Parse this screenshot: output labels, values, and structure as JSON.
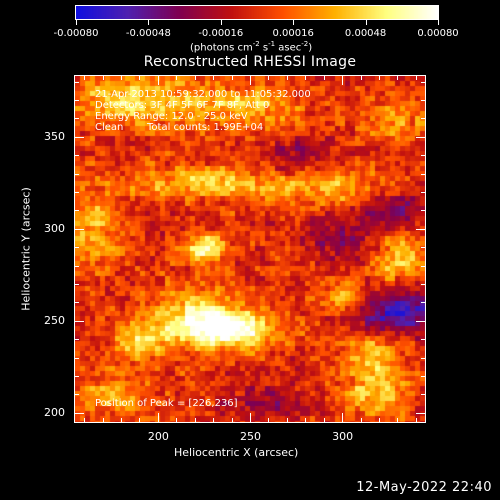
{
  "colorbar": {
    "tick_labels": [
      "-0.00080",
      "-0.00048",
      "-0.00016",
      "0.00016",
      "0.00048",
      "0.00080"
    ],
    "units": "(photons cm",
    "units_exp1": "-2",
    "units_mid1": " s",
    "units_exp2": "-1",
    "units_mid2": " asec",
    "units_exp3": "-2",
    "units_end": ")",
    "colors": [
      "#1010e0",
      "#5020b0",
      "#800050",
      "#c01010",
      "#ff5000",
      "#ffb000",
      "#ffff80",
      "#ffffff"
    ],
    "range": [
      -0.0008,
      0.0008
    ]
  },
  "title": "Reconstructed RHESSI Image",
  "annotations": {
    "time_line": "21-Apr-2013 10:59:32.000 to 11:05:32.000",
    "detectors_line": "Detectors: 3F 4F 5F 6F 7F 8F, Att 0",
    "energy_line": "Energy Range: 12.0 - 25.0 keV",
    "clean_label": "Clean",
    "counts_line": "Total counts: 1.99E+04",
    "peak_line": "Position of Peak = [226,236]"
  },
  "axes": {
    "xlabel": "Heliocentric X (arcsec)",
    "ylabel": "Heliocentric Y (arcsec)",
    "x_ticks": [
      "200",
      "250",
      "300"
    ],
    "y_ticks": [
      "200",
      "250",
      "300",
      "350"
    ],
    "xlim": [
      155,
      345
    ],
    "ylim": [
      195,
      383
    ]
  },
  "date_stamp": "12-May-2022 22:40",
  "chart_data": {
    "type": "heatmap",
    "title": "Reconstructed RHESSI Image",
    "xlabel": "Heliocentric X (arcsec)",
    "ylabel": "Heliocentric Y (arcsec)",
    "xlim": [
      155,
      345
    ],
    "ylim": [
      195,
      383
    ],
    "peak": [
      226,
      236
    ],
    "blobs": [
      {
        "x": 235,
        "y": 245,
        "sx": 20,
        "sy": 7,
        "amp": 1.0
      },
      {
        "x": 225,
        "y": 289,
        "sx": 7,
        "sy": 5,
        "amp": 0.85
      },
      {
        "x": 222,
        "y": 255,
        "sx": 16,
        "sy": 10,
        "amp": 0.55
      },
      {
        "x": 190,
        "y": 240,
        "sx": 9,
        "sy": 8,
        "amp": 0.6
      },
      {
        "x": 185,
        "y": 370,
        "sx": 30,
        "sy": 10,
        "amp": 0.55
      },
      {
        "x": 250,
        "y": 366,
        "sx": 20,
        "sy": 7,
        "amp": 0.45
      },
      {
        "x": 225,
        "y": 325,
        "sx": 30,
        "sy": 6,
        "amp": 0.5
      },
      {
        "x": 290,
        "y": 322,
        "sx": 22,
        "sy": 7,
        "amp": 0.45
      },
      {
        "x": 330,
        "y": 285,
        "sx": 10,
        "sy": 10,
        "amp": 0.5
      },
      {
        "x": 315,
        "y": 230,
        "sx": 12,
        "sy": 10,
        "amp": 0.45
      },
      {
        "x": 320,
        "y": 210,
        "sx": 12,
        "sy": 8,
        "amp": 0.5
      },
      {
        "x": 300,
        "y": 262,
        "sx": 8,
        "sy": 6,
        "amp": 0.55
      },
      {
        "x": 165,
        "y": 300,
        "sx": 10,
        "sy": 14,
        "amp": 0.45
      },
      {
        "x": 175,
        "y": 210,
        "sx": 14,
        "sy": 8,
        "amp": 0.4
      },
      {
        "x": 330,
        "y": 360,
        "sx": 12,
        "sy": 8,
        "amp": 0.35
      },
      {
        "x": 330,
        "y": 255,
        "sx": 18,
        "sy": 8,
        "amp": -0.8
      },
      {
        "x": 330,
        "y": 310,
        "sx": 12,
        "sy": 8,
        "amp": -0.45
      },
      {
        "x": 300,
        "y": 295,
        "sx": 15,
        "sy": 10,
        "amp": -0.35
      },
      {
        "x": 260,
        "y": 205,
        "sx": 15,
        "sy": 8,
        "amp": -0.35
      },
      {
        "x": 275,
        "y": 340,
        "sx": 15,
        "sy": 8,
        "amp": -0.3
      }
    ]
  }
}
